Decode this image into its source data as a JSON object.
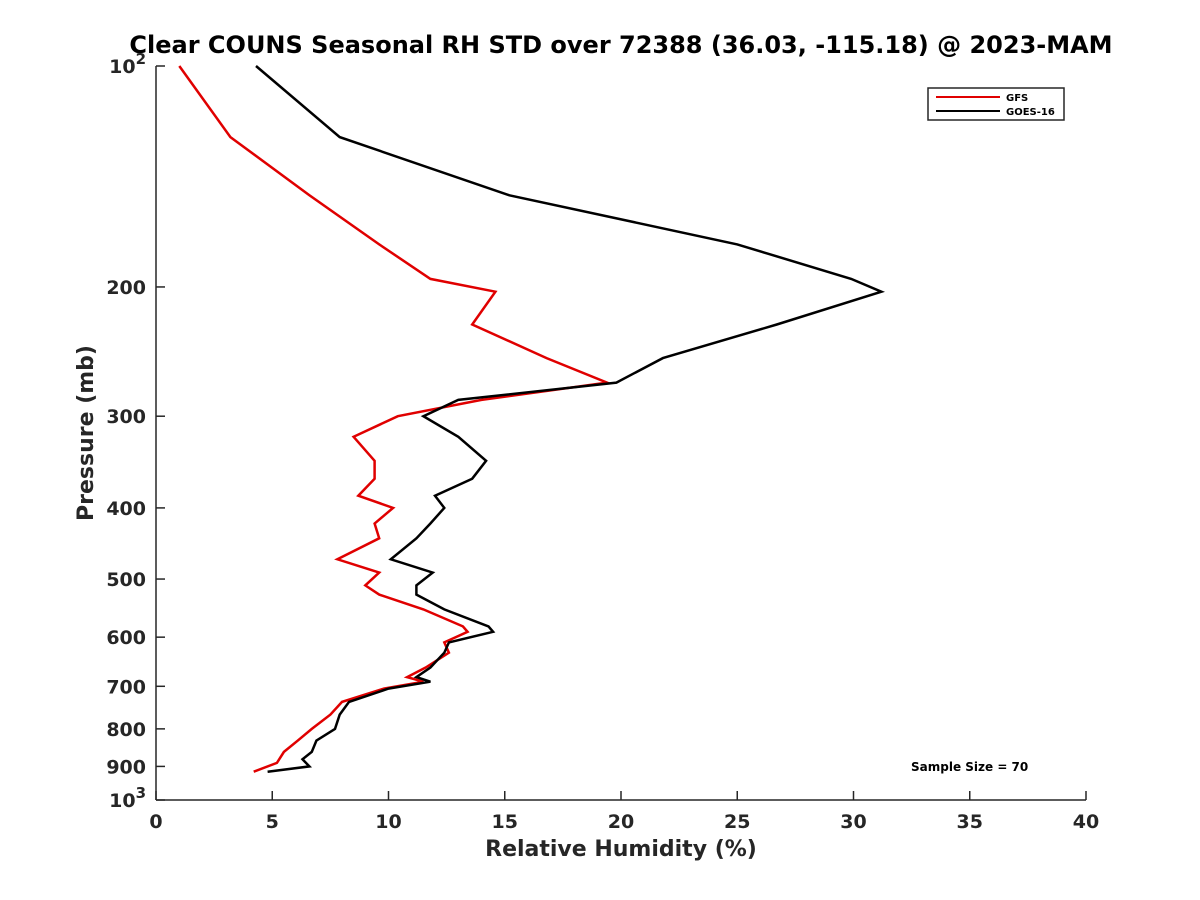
{
  "chart_data": {
    "type": "line",
    "title": "Clear COUNS Seasonal RH STD over 72388 (36.03, -115.18) @ 2023-MAM",
    "xlabel": "Relative Humidity (%)",
    "ylabel": "Pressure (mb)",
    "xlim": [
      0,
      40
    ],
    "ylim": [
      100,
      1000
    ],
    "yscale": "log",
    "yreversed": true,
    "grid": false,
    "legend_position": "top-right",
    "x_ticks": [
      "0",
      "5",
      "10",
      "15",
      "20",
      "25",
      "30",
      "35",
      "40"
    ],
    "x_tick_values": [
      0,
      5,
      10,
      15,
      20,
      25,
      30,
      35,
      40
    ],
    "y_ticks": [
      {
        "value": 100,
        "base": "10",
        "exp": "2"
      },
      {
        "value": 200,
        "label": "200"
      },
      {
        "value": 300,
        "label": "300"
      },
      {
        "value": 400,
        "label": "400"
      },
      {
        "value": 500,
        "label": "500"
      },
      {
        "value": 600,
        "label": "600"
      },
      {
        "value": 700,
        "label": "700"
      },
      {
        "value": 800,
        "label": "800"
      },
      {
        "value": 900,
        "label": "900"
      },
      {
        "value": 1000,
        "base": "10",
        "exp": "3"
      }
    ],
    "annotation": "Sample Size = 70",
    "series": [
      {
        "name": "GFS",
        "color": "#e00000",
        "points": [
          [
            1.0,
            100
          ],
          [
            3.2,
            125
          ],
          [
            6.6,
            150
          ],
          [
            9.6,
            175
          ],
          [
            11.8,
            195
          ],
          [
            14.6,
            203
          ],
          [
            13.6,
            225
          ],
          [
            16.8,
            250
          ],
          [
            19.4,
            270
          ],
          [
            14.0,
            285
          ],
          [
            10.4,
            300
          ],
          [
            8.5,
            320
          ],
          [
            9.4,
            345
          ],
          [
            9.4,
            365
          ],
          [
            8.7,
            385
          ],
          [
            10.2,
            400
          ],
          [
            9.4,
            420
          ],
          [
            9.6,
            440
          ],
          [
            7.8,
            470
          ],
          [
            9.6,
            490
          ],
          [
            9.0,
            510
          ],
          [
            9.6,
            525
          ],
          [
            11.5,
            550
          ],
          [
            13.2,
            580
          ],
          [
            13.4,
            590
          ],
          [
            12.4,
            610
          ],
          [
            12.6,
            630
          ],
          [
            11.6,
            660
          ],
          [
            10.8,
            680
          ],
          [
            11.5,
            690
          ],
          [
            9.8,
            705
          ],
          [
            8.0,
            735
          ],
          [
            7.5,
            765
          ],
          [
            6.7,
            800
          ],
          [
            6.1,
            830
          ],
          [
            5.5,
            860
          ],
          [
            5.2,
            890
          ],
          [
            4.2,
            915
          ]
        ]
      },
      {
        "name": "GOES-16",
        "color": "#000000",
        "points": [
          [
            4.3,
            100
          ],
          [
            7.9,
            125
          ],
          [
            15.2,
            150
          ],
          [
            25.0,
            175
          ],
          [
            29.9,
            195
          ],
          [
            31.2,
            203
          ],
          [
            26.7,
            225
          ],
          [
            21.8,
            250
          ],
          [
            19.8,
            270
          ],
          [
            13.0,
            285
          ],
          [
            11.5,
            300
          ],
          [
            13.0,
            320
          ],
          [
            14.2,
            345
          ],
          [
            13.6,
            365
          ],
          [
            12.0,
            385
          ],
          [
            12.4,
            400
          ],
          [
            11.8,
            420
          ],
          [
            11.2,
            440
          ],
          [
            10.1,
            470
          ],
          [
            11.9,
            490
          ],
          [
            11.2,
            510
          ],
          [
            11.2,
            525
          ],
          [
            12.4,
            550
          ],
          [
            14.3,
            580
          ],
          [
            14.5,
            590
          ],
          [
            12.6,
            610
          ],
          [
            12.4,
            630
          ],
          [
            11.8,
            660
          ],
          [
            11.2,
            680
          ],
          [
            11.8,
            690
          ],
          [
            10.0,
            705
          ],
          [
            8.3,
            735
          ],
          [
            7.9,
            765
          ],
          [
            7.7,
            800
          ],
          [
            6.9,
            830
          ],
          [
            6.7,
            860
          ],
          [
            6.3,
            880
          ],
          [
            6.6,
            900
          ],
          [
            4.8,
            915
          ]
        ]
      }
    ]
  }
}
